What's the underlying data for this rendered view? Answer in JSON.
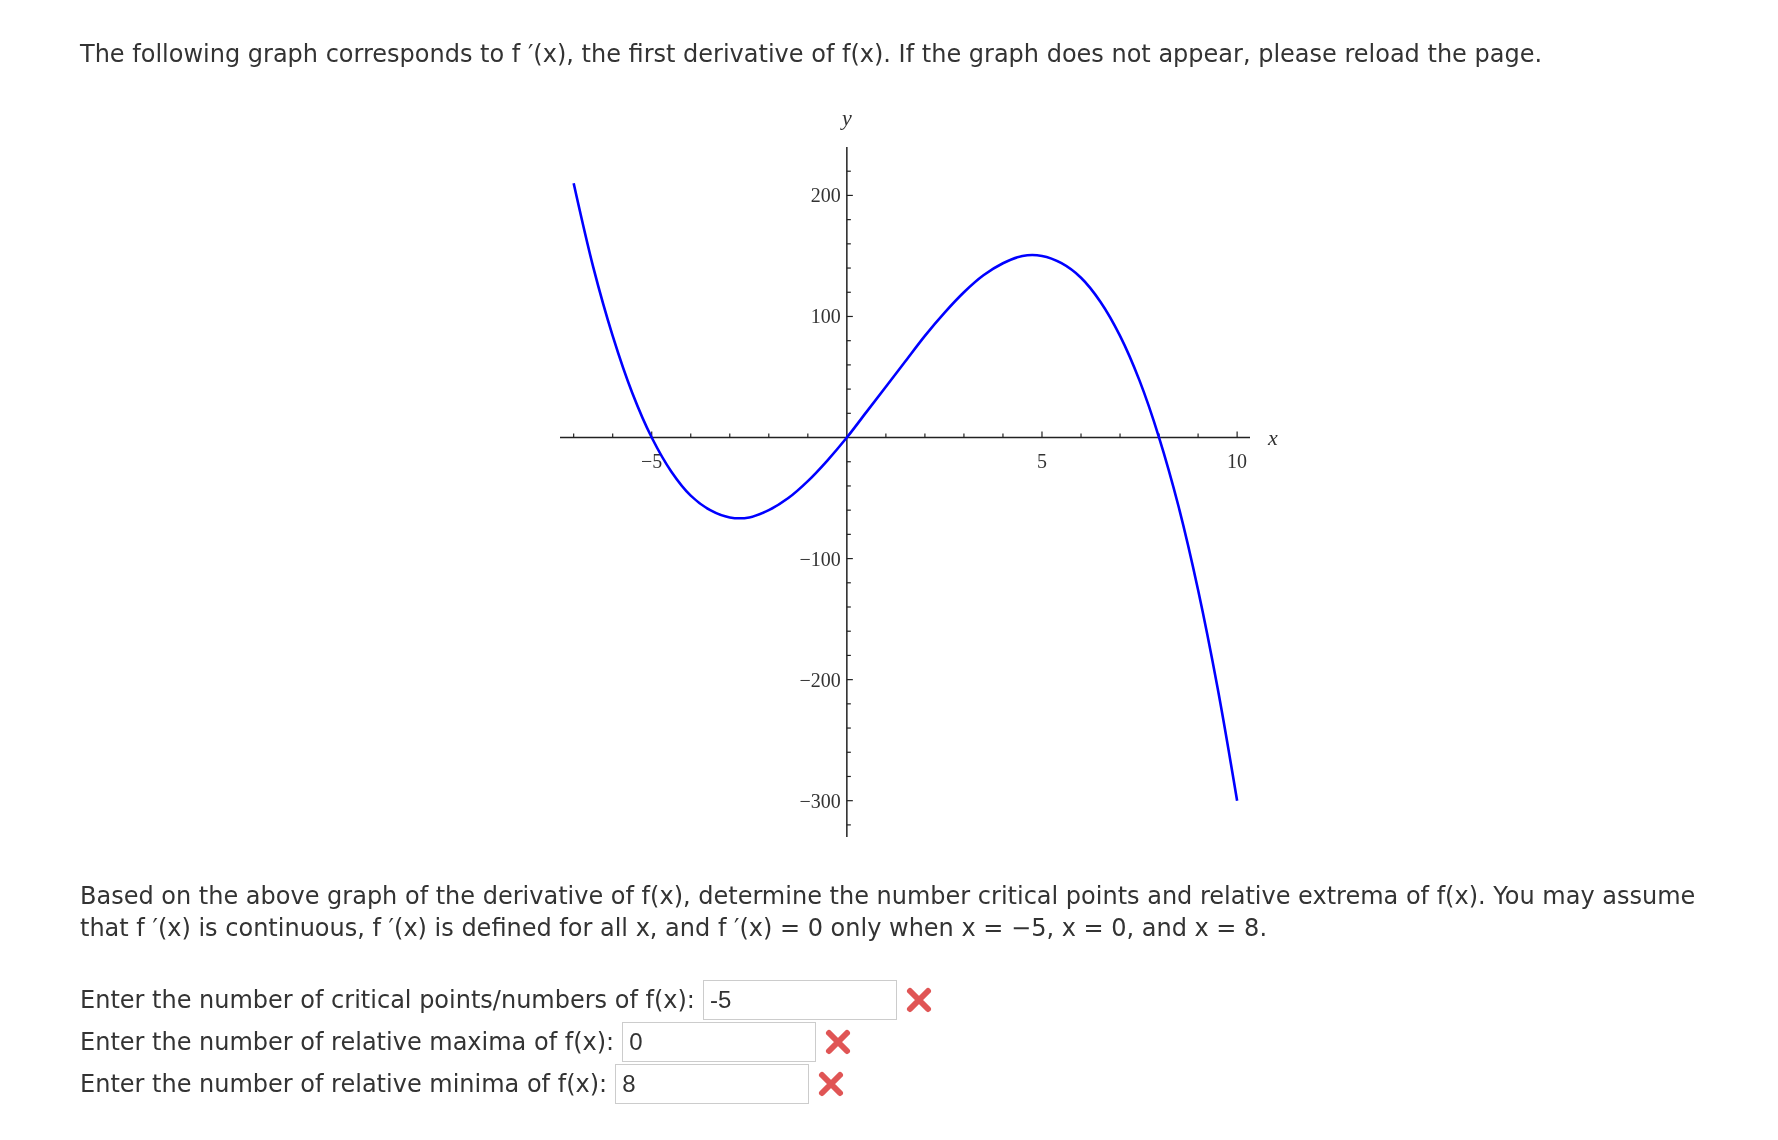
{
  "chart_data": {
    "type": "line",
    "title": "The following graph corresponds to f ′(x), the first derivative of f(x). If the graph does not appear, please reload the page.",
    "xlabel": "x",
    "ylabel": "y",
    "x": [
      -7,
      -6.5,
      -6,
      -5.5,
      -5,
      -4.5,
      -4,
      -3.5,
      -3,
      -2.5,
      -2,
      -1.5,
      -1,
      -0.5,
      0,
      0.5,
      1,
      1.5,
      2,
      2.5,
      3,
      3.5,
      4,
      4.5,
      5,
      5.5,
      6,
      6.5,
      7,
      7.5,
      8,
      8.5,
      9,
      9.5,
      10
    ],
    "series": [
      {
        "color": "#0000ff",
        "values": [
          210,
          141,
          84,
          37,
          0,
          -28,
          -48,
          -60,
          -66,
          -66,
          -60,
          -50,
          -36,
          -19,
          0,
          21,
          42,
          63,
          84,
          103,
          120,
          134,
          144,
          150,
          150,
          144,
          132,
          112,
          84,
          47,
          0,
          -57,
          -126,
          -207,
          -300
        ]
      }
    ],
    "xlim": [
      -7.35,
      10.33
    ],
    "ylim": [
      -330,
      240
    ],
    "xticks": [
      {
        "value": -7,
        "label": null
      },
      {
        "value": -6,
        "label": null
      },
      -5,
      {
        "value": -4,
        "label": null
      },
      {
        "value": -3,
        "label": null
      },
      {
        "value": -2,
        "label": null
      },
      {
        "value": -1,
        "label": null
      },
      {
        "value": 1,
        "label": null
      },
      {
        "value": 2,
        "label": null
      },
      {
        "value": 3,
        "label": null
      },
      {
        "value": 4,
        "label": null
      },
      5,
      {
        "value": 6,
        "label": null
      },
      {
        "value": 7,
        "label": null
      },
      {
        "value": 8,
        "label": null
      },
      {
        "value": 9,
        "label": null
      },
      10
    ],
    "yticks": [
      {
        "value": -320,
        "label": null
      },
      -300,
      {
        "value": -280,
        "label": null
      },
      {
        "value": -260,
        "label": null
      },
      {
        "value": -240,
        "label": null
      },
      {
        "value": -220,
        "label": null
      },
      -200,
      {
        "value": -180,
        "label": null
      },
      {
        "value": -160,
        "label": null
      },
      {
        "value": -140,
        "label": null
      },
      {
        "value": -120,
        "label": null
      },
      -100,
      {
        "value": -80,
        "label": null
      },
      {
        "value": -60,
        "label": null
      },
      {
        "value": -40,
        "label": null
      },
      {
        "value": -20,
        "label": null
      },
      {
        "value": 20,
        "label": null
      },
      {
        "value": 40,
        "label": null
      },
      {
        "value": 60,
        "label": null
      },
      {
        "value": 80,
        "label": null
      },
      100,
      {
        "value": 120,
        "label": null
      },
      {
        "value": 140,
        "label": null
      },
      {
        "value": 160,
        "label": null
      },
      {
        "value": 180,
        "label": null
      },
      200,
      {
        "value": 220,
        "label": null
      }
    ],
    "grid": false,
    "marker": "none",
    "line_style": "solid",
    "annotations": [
      "Based on the above graph of the derivative of f(x), determine the number critical points and relative extrema of f(x). You may assume that f ′(x) is continuous, f ′(x) is defined for all x, and f ′(x)  =  0 only when x  =  −5, x  =  0, and x  =  8.",
      "Enter the number of critical points/numbers of f(x):",
      "-5",
      "Enter the number of relative maxima of f(x):",
      "0",
      "Enter the number of relative minima of f(x):",
      "8"
    ]
  }
}
